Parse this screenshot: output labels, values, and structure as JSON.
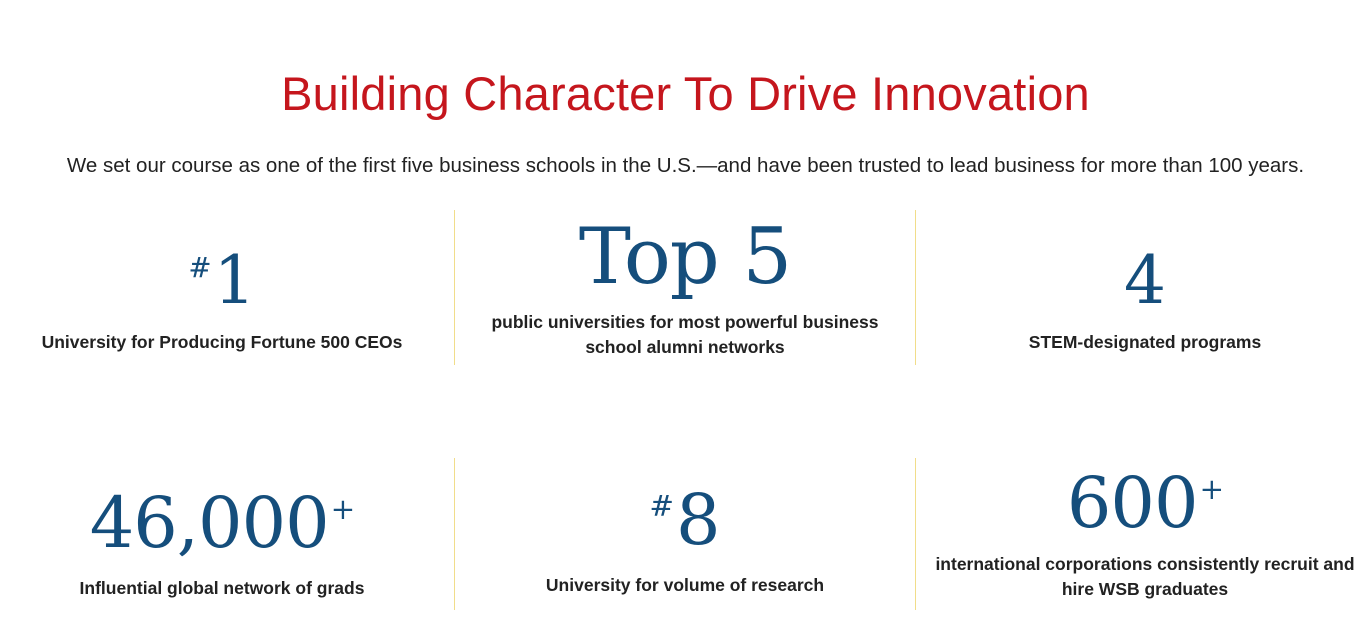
{
  "heading": {
    "title": "Building Character To Drive Innovation",
    "subtitle": "We set our course as one of the first five business schools in the U.S.—and have been trusted to lead business for more than 100 years."
  },
  "stats": [
    {
      "prefix": "#",
      "value": "1",
      "suffix": "",
      "label": "University for Producing Fortune 500 CEOs"
    },
    {
      "prefix": "",
      "value": "Top 5",
      "suffix": "",
      "label": "public universities for most powerful business school alumni networks"
    },
    {
      "prefix": "",
      "value": "4",
      "suffix": "",
      "label": "STEM-designated programs"
    },
    {
      "prefix": "",
      "value": "46,000",
      "suffix": "+",
      "label": "Influential global network of grads"
    },
    {
      "prefix": "#",
      "value": "8",
      "suffix": "",
      "label": "University for volume of research"
    },
    {
      "prefix": "",
      "value": "600",
      "suffix": "+",
      "label": "international corporations consistently recruit and hire WSB graduates"
    }
  ],
  "colors": {
    "title": "#c5161d",
    "stat_number": "#154e7c",
    "divider": "#f1dd8a",
    "text": "#222222"
  }
}
